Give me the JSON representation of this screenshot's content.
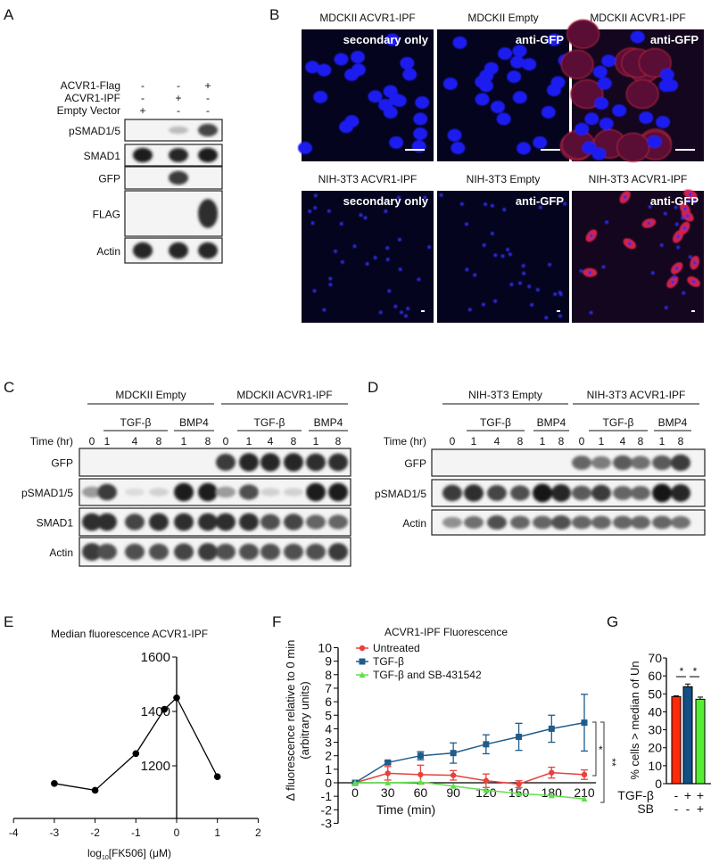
{
  "panels": {
    "A": {
      "letter": "A",
      "conditions": [
        {
          "label": "ACVR1-Flag",
          "signs": [
            "-",
            "-",
            "+"
          ]
        },
        {
          "label": "ACVR1-IPF",
          "signs": [
            "-",
            "+",
            "-"
          ]
        },
        {
          "label": "Empty Vector",
          "signs": [
            "+",
            "-",
            "-"
          ]
        }
      ],
      "blots": [
        {
          "label": "pSMAD1/5",
          "intensity": [
            0,
            0.2,
            0.75
          ]
        },
        {
          "label": "SMAD1",
          "intensity": [
            0.95,
            0.9,
            0.95
          ]
        },
        {
          "label": "GFP",
          "intensity": [
            0,
            0.8,
            0
          ]
        },
        {
          "label": "FLAG",
          "intensity": [
            0,
            0,
            0.85
          ]
        },
        {
          "label": "Actin",
          "intensity": [
            0.9,
            0.9,
            0.9
          ]
        }
      ]
    },
    "B": {
      "letter": "B",
      "images": [
        {
          "title": "MDCKII ACVR1-IPF",
          "stain": "secondary only",
          "red": false,
          "sparse": false
        },
        {
          "title": "MDCKII Empty",
          "stain": "anti-GFP",
          "red": false,
          "sparse": false
        },
        {
          "title": "MDCKII ACVR1-IPF",
          "stain": "anti-GFP",
          "red": true,
          "sparse": false
        },
        {
          "title": "NIH-3T3 ACVR1-IPF",
          "stain": "secondary only",
          "red": false,
          "sparse": true
        },
        {
          "title": "NIH-3T3 Empty",
          "stain": "anti-GFP",
          "red": false,
          "sparse": true
        },
        {
          "title": "NIH-3T3 ACVR1-IPF",
          "stain": "anti-GFP",
          "red": true,
          "sparse": true
        }
      ]
    },
    "C": {
      "letter": "C",
      "groups": [
        "MDCKII Empty",
        "MDCKII ACVR1-IPF"
      ],
      "treatments": [
        "TGF-β",
        "BMP4",
        "TGF-β",
        "BMP4"
      ],
      "time_label": "Time (hr)",
      "lanes": [
        "0",
        "1",
        "4",
        "8",
        "1",
        "8",
        "0",
        "1",
        "4",
        "8",
        "1",
        "8"
      ],
      "blots": [
        {
          "label": "GFP",
          "intensity": [
            0,
            0,
            0,
            0,
            0,
            0,
            0.8,
            0.9,
            0.9,
            0.9,
            0.85,
            0.85
          ]
        },
        {
          "label": "pSMAD1/5",
          "intensity": [
            0.35,
            0.8,
            0.05,
            0.1,
            0.95,
            0.95,
            0.35,
            0.7,
            0.1,
            0.1,
            0.95,
            0.95
          ]
        },
        {
          "label": "SMAD1",
          "intensity": [
            0.85,
            0.85,
            0.75,
            0.85,
            0.85,
            0.85,
            0.85,
            0.85,
            0.7,
            0.75,
            0.6,
            0.6
          ]
        },
        {
          "label": "Actin",
          "intensity": [
            0.8,
            0.7,
            0.7,
            0.7,
            0.75,
            0.8,
            0.7,
            0.7,
            0.7,
            0.7,
            0.7,
            0.8
          ]
        }
      ]
    },
    "D": {
      "letter": "D",
      "groups": [
        "NIH-3T3 Empty",
        "NIH-3T3 ACVR1-IPF"
      ],
      "treatments": [
        "TGF-β",
        "BMP4",
        "TGF-β",
        "BMP4"
      ],
      "time_label": "Time (hr)",
      "lanes": [
        "0",
        "1",
        "4",
        "8",
        "1",
        "8",
        "0",
        "1",
        "4",
        "8",
        "1",
        "8"
      ],
      "blots": [
        {
          "label": "GFP",
          "intensity": [
            0,
            0,
            0,
            0,
            0,
            0,
            0.6,
            0.5,
            0.65,
            0.55,
            0.65,
            0.8
          ]
        },
        {
          "label": "pSMAD1/5",
          "intensity": [
            0.8,
            0.85,
            0.75,
            0.7,
            0.98,
            0.9,
            0.65,
            0.8,
            0.6,
            0.6,
            0.98,
            0.9
          ]
        },
        {
          "label": "Actin",
          "intensity": [
            0.4,
            0.55,
            0.7,
            0.6,
            0.6,
            0.7,
            0.6,
            0.6,
            0.6,
            0.6,
            0.6,
            0.55
          ]
        }
      ]
    },
    "E": {
      "letter": "E"
    },
    "F": {
      "letter": "F"
    },
    "G": {
      "letter": "G"
    }
  },
  "chart_data": [
    {
      "panel": "E",
      "type": "line",
      "title": "Median fluorescence ACVR1-IPF",
      "xlabel": "log10[FK506] (μM)",
      "xlabel_base": "log",
      "xlabel_sub": "10",
      "xlabel_rest": "[FK506] (μM)",
      "ylabel": "",
      "xlim": [
        -4,
        2
      ],
      "ylim": [
        1000,
        1600
      ],
      "x_ticks": [
        -4,
        -3,
        -2,
        -1,
        0,
        1,
        2
      ],
      "y_ticks": [
        1200,
        1400,
        1600
      ],
      "x": [
        -3,
        -2,
        -1,
        -0.3,
        0,
        1
      ],
      "y": [
        1135,
        1110,
        1245,
        1408,
        1450,
        1160
      ],
      "color": "#000000"
    },
    {
      "panel": "F",
      "type": "line",
      "title": "ACVR1-IPF Fluorescence",
      "xlabel": "Time (min)",
      "ylabel": "Δ fluorescence relative to 0 min",
      "ylabel2": "(arbitrary units)",
      "xlim": [
        0,
        210
      ],
      "ylim": [
        -3,
        10
      ],
      "x_ticks": [
        0,
        30,
        60,
        90,
        120,
        150,
        180,
        210
      ],
      "y_ticks": [
        -3,
        -2,
        -1,
        0,
        1,
        2,
        3,
        4,
        5,
        6,
        7,
        8,
        9,
        10
      ],
      "x": [
        0,
        30,
        60,
        90,
        120,
        150,
        180,
        210
      ],
      "legend": "top-left",
      "series": [
        {
          "name": "Untreated",
          "color": "#e8413c",
          "marker": "circle",
          "values": [
            0,
            0.7,
            0.6,
            0.55,
            0.15,
            -0.1,
            0.75,
            0.6
          ],
          "errors": [
            0,
            0.5,
            0.7,
            0.35,
            0.5,
            0.25,
            0.4,
            0.35
          ]
        },
        {
          "name": "TGF-β",
          "color": "#1f5c8c",
          "marker": "square",
          "values": [
            0,
            1.5,
            2.0,
            2.2,
            2.85,
            3.4,
            4.0,
            4.45
          ],
          "errors": [
            0,
            0.1,
            0.3,
            0.75,
            0.7,
            1.0,
            1.0,
            2.1
          ]
        },
        {
          "name": "TGF-β and SB-431542",
          "color": "#5ee04a",
          "marker": "triangle",
          "values": [
            0,
            0,
            0.05,
            -0.25,
            -0.55,
            -0.8,
            -0.95,
            -1.2
          ],
          "errors": [
            0,
            0,
            0,
            0,
            0,
            0,
            0,
            0
          ]
        }
      ],
      "significance": [
        "*",
        "**"
      ]
    },
    {
      "panel": "G",
      "type": "bar",
      "ylabel": "% cells > median of Un",
      "ylim": [
        0,
        70
      ],
      "y_ticks": [
        0,
        10,
        20,
        30,
        40,
        50,
        60,
        70
      ],
      "categories": [
        {
          "TGF-β": "-",
          "SB": "-"
        },
        {
          "TGF-β": "+",
          "SB": "-"
        },
        {
          "TGF-β": "+",
          "SB": "+"
        }
      ],
      "row_labels": [
        "TGF-β",
        "SB"
      ],
      "values": [
        48.5,
        54,
        47
      ],
      "errors": [
        0.4,
        1.5,
        1.2
      ],
      "colors": [
        "#ff2a0a",
        "#124f86",
        "#55ee33"
      ],
      "significance": [
        "*",
        "*"
      ]
    }
  ]
}
